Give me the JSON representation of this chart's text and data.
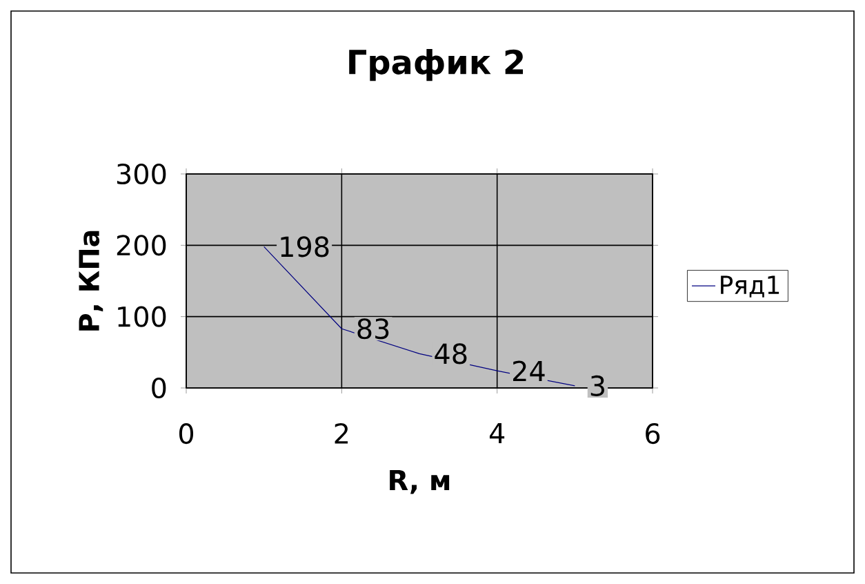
{
  "chart_data": {
    "type": "line",
    "title": "График 2",
    "xlabel": "R, м",
    "ylabel": "Р, КПа",
    "x": [
      1,
      2,
      3,
      4,
      5
    ],
    "series": [
      {
        "name": "Ряд1",
        "color": "#000080",
        "values": [
          198,
          83,
          48,
          24,
          3
        ]
      }
    ],
    "value_labels": [
      "198",
      "83",
      "48",
      "24",
      "3"
    ],
    "xlim": [
      0,
      6
    ],
    "xticks": [
      0,
      2,
      4,
      6
    ],
    "ylim": [
      0,
      300
    ],
    "yticks": [
      0,
      100,
      200,
      300
    ],
    "grid": true,
    "legend": "right",
    "marker": "none",
    "line_style": "solid"
  }
}
